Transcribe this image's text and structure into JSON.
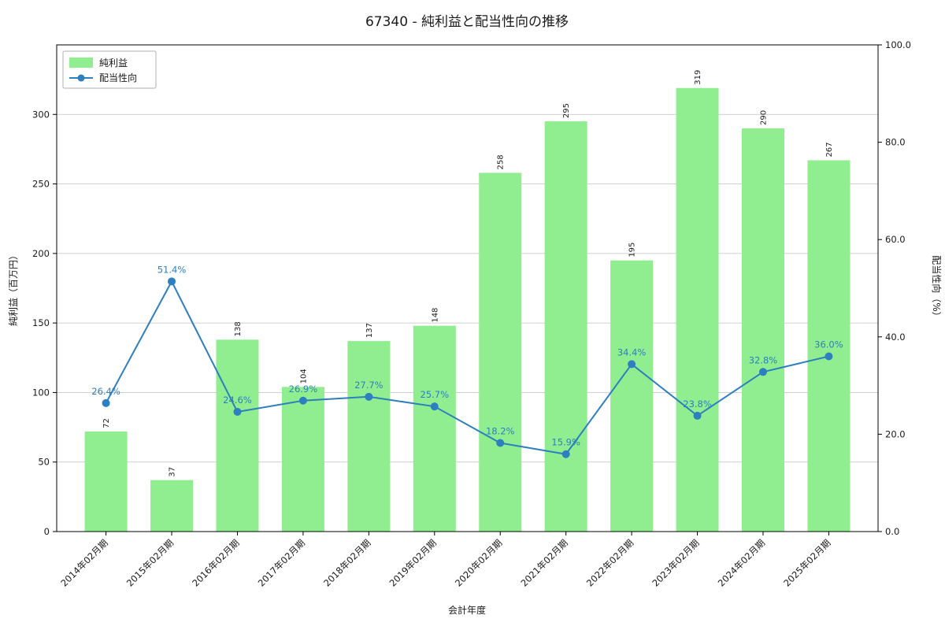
{
  "title": "67340 - 純利益と配当性向の推移",
  "chart_data": {
    "type": "bar+line",
    "title": "67340 - 純利益と配当性向の推移",
    "xlabel": "会計年度",
    "categories": [
      "2014年02月期",
      "2015年02月期",
      "2016年02月期",
      "2017年02月期",
      "2018年02月期",
      "2019年02月期",
      "2020年02月期",
      "2021年02月期",
      "2022年02月期",
      "2023年02月期",
      "2024年02月期",
      "2025年02月期"
    ],
    "series": [
      {
        "name": "純利益",
        "type": "bar",
        "axis": "left",
        "color": "#90ee90",
        "values": [
          72,
          37,
          138,
          104,
          137,
          148,
          258,
          295,
          195,
          319,
          290,
          267
        ],
        "value_labels": [
          "72",
          "37",
          "138",
          "104",
          "137",
          "148",
          "258",
          "295",
          "195",
          "319",
          "290",
          "267"
        ]
      },
      {
        "name": "配当性向",
        "type": "line",
        "axis": "right",
        "color": "#2d7fbf",
        "unit": "%",
        "values": [
          26.4,
          51.4,
          24.6,
          26.9,
          27.7,
          25.7,
          18.2,
          15.9,
          34.4,
          23.8,
          32.8,
          36.0
        ],
        "point_labels": [
          "26.4%",
          "51.4%",
          "24.6%",
          "26.9%",
          "27.7%",
          "25.7%",
          "18.2%",
          "15.9%",
          "34.4%",
          "23.8%",
          "32.8%",
          "36.0%"
        ]
      }
    ],
    "left_axis": {
      "label": "純利益（百万円）",
      "range": [
        0,
        350
      ],
      "ticks": [
        0,
        50,
        100,
        150,
        200,
        250,
        300
      ],
      "tick_labels": [
        "0",
        "50",
        "100",
        "150",
        "200",
        "250",
        "300"
      ]
    },
    "right_axis": {
      "label": "配当性向（%）",
      "range": [
        0,
        100
      ],
      "ticks": [
        0,
        20,
        40,
        60,
        80,
        100
      ],
      "tick_labels": [
        "0.0",
        "20.0",
        "40.0",
        "60.0",
        "80.0",
        "100.0"
      ]
    },
    "grid": true,
    "legend_position": "upper-left"
  }
}
